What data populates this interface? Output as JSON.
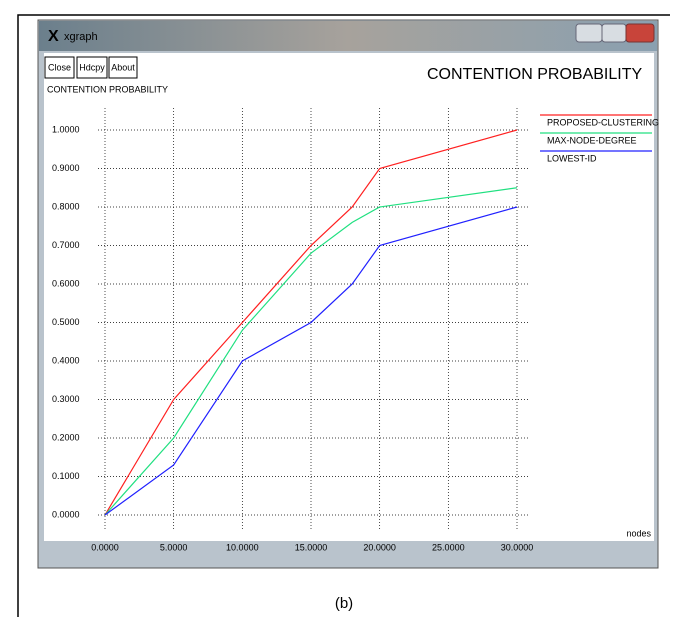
{
  "window": {
    "title": "xgraph",
    "buttons": [
      "Close",
      "Hdcpy",
      "About"
    ]
  },
  "chart_data": {
    "type": "line",
    "title": "CONTENTION PROBABILITY",
    "y_label": "CONTENTION PROBABILITY",
    "x_label": "nodes",
    "x": [
      0,
      5,
      10,
      15,
      18,
      20,
      30
    ],
    "series": [
      {
        "name": "PROPOSED-CLUSTERING",
        "color": "#ff2020",
        "values": [
          0,
          0.3,
          0.5,
          0.7,
          0.8,
          0.9,
          1.0
        ]
      },
      {
        "name": "MAX-NODE-DEGREE",
        "color": "#20e080",
        "values": [
          0,
          0.2,
          0.48,
          0.68,
          0.76,
          0.8,
          0.85
        ]
      },
      {
        "name": "LOWEST-ID",
        "color": "#2020ff",
        "values": [
          0,
          0.13,
          0.4,
          0.5,
          0.6,
          0.7,
          0.8
        ]
      }
    ],
    "xlim": [
      0,
      30
    ],
    "xticks": [
      {
        "value": 0,
        "label": "0.0000"
      },
      {
        "value": 5,
        "label": "5.0000"
      },
      {
        "value": 10,
        "label": "10.0000"
      },
      {
        "value": 15,
        "label": "15.0000"
      },
      {
        "value": 20,
        "label": "20.0000"
      },
      {
        "value": 25,
        "label": "25.0000"
      },
      {
        "value": 30,
        "label": "30.0000"
      }
    ],
    "ylim": [
      0,
      1
    ],
    "yticks": [
      {
        "value": 0,
        "label": "0.0000"
      },
      {
        "value": 0.1,
        "label": "0.1000"
      },
      {
        "value": 0.2,
        "label": "0.2000"
      },
      {
        "value": 0.3,
        "label": "0.3000"
      },
      {
        "value": 0.4,
        "label": "0.4000"
      },
      {
        "value": 0.5,
        "label": "0.5000"
      },
      {
        "value": 0.6,
        "label": "0.6000"
      },
      {
        "value": 0.7,
        "label": "0.7000"
      },
      {
        "value": 0.8,
        "label": "0.8000"
      },
      {
        "value": 0.9,
        "label": "0.9000"
      },
      {
        "value": 1,
        "label": "1.0000"
      }
    ],
    "grid": true
  },
  "caption": "(b)"
}
